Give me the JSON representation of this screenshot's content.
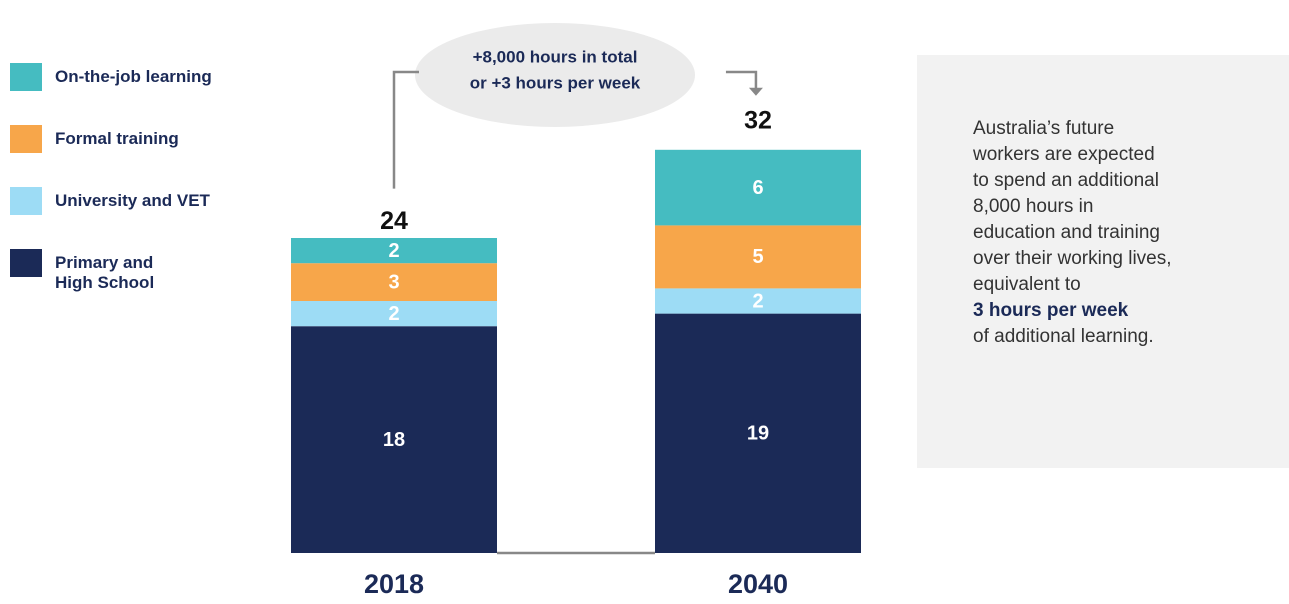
{
  "chart_data": {
    "type": "stacked_bar",
    "categories": [
      "2018",
      "2040"
    ],
    "series": [
      {
        "name": "Primary and\nHigh School",
        "color": "#1b2a57",
        "values": [
          18,
          19
        ]
      },
      {
        "name": "University and VET",
        "color": "#9ddcf5",
        "values": [
          2,
          2
        ]
      },
      {
        "name": "Formal training",
        "color": "#f7a64a",
        "values": [
          3,
          5
        ]
      },
      {
        "name": "On-the-job learning",
        "color": "#45bcc1",
        "values": [
          2,
          6
        ]
      }
    ],
    "totals": [
      24,
      32
    ],
    "annotation": [
      "+8,000 hours in total",
      "or +3 hours per week"
    ],
    "note": {
      "lines": [
        "Australia’s future",
        "workers are expected",
        "to spend an additional",
        "8,000 hours in",
        "education and training",
        "over their working lives,",
        "equivalent to"
      ],
      "emphasis": "3 hours per week",
      "ending": "of additional learning."
    }
  }
}
